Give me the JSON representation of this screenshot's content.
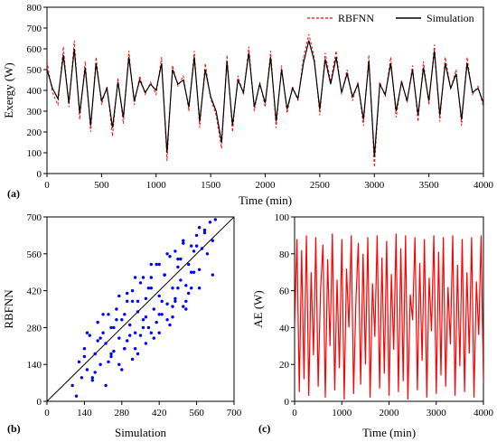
{
  "chart_data": [
    {
      "panel_label": "(a)",
      "type": "line",
      "xlabel": "Time (min)",
      "ylabel": "Exergy (W)",
      "xlim": [
        0,
        4000
      ],
      "ylim": [
        0,
        800
      ],
      "xticks": [
        0,
        500,
        1000,
        1500,
        2000,
        2500,
        3000,
        3500,
        4000
      ],
      "yticks": [
        0,
        100,
        200,
        300,
        400,
        500,
        600,
        700,
        800
      ],
      "legend_placement": "top-right",
      "series": [
        {
          "name": "RBFNN",
          "color": "#ff0000",
          "style": "dashed",
          "x": [
            0,
            50,
            100,
            150,
            200,
            250,
            300,
            350,
            400,
            450,
            500,
            550,
            600,
            650,
            700,
            750,
            800,
            850,
            900,
            950,
            1000,
            1050,
            1100,
            1150,
            1200,
            1250,
            1300,
            1350,
            1400,
            1450,
            1500,
            1550,
            1600,
            1650,
            1700,
            1750,
            1800,
            1850,
            1900,
            1950,
            2000,
            2050,
            2100,
            2150,
            2200,
            2250,
            2300,
            2350,
            2400,
            2450,
            2500,
            2550,
            2600,
            2650,
            2700,
            2750,
            2800,
            2850,
            2900,
            2950,
            3000,
            3050,
            3100,
            3150,
            3200,
            3250,
            3300,
            3350,
            3400,
            3450,
            3500,
            3550,
            3600,
            3650,
            3700,
            3750,
            3800,
            3850,
            3900,
            3950,
            4000
          ],
          "y": [
            540,
            390,
            330,
            610,
            320,
            640,
            260,
            540,
            200,
            560,
            330,
            420,
            180,
            460,
            240,
            590,
            330,
            470,
            380,
            440,
            380,
            560,
            60,
            520,
            420,
            470,
            300,
            590,
            220,
            530,
            360,
            280,
            120,
            570,
            200,
            470,
            380,
            610,
            300,
            440,
            320,
            590,
            220,
            520,
            290,
            420,
            350,
            560,
            670,
            560,
            280,
            580,
            440,
            590,
            380,
            500,
            350,
            440,
            230,
            570,
            30,
            440,
            370,
            560,
            270,
            450,
            340,
            520,
            250,
            540,
            330,
            620,
            250,
            560,
            410,
            500,
            230,
            560,
            380,
            420,
            320
          ]
        },
        {
          "name": "Simulation",
          "color": "#000000",
          "style": "solid",
          "x": [
            0,
            50,
            100,
            150,
            200,
            250,
            300,
            350,
            400,
            450,
            500,
            550,
            600,
            650,
            700,
            750,
            800,
            850,
            900,
            950,
            1000,
            1050,
            1100,
            1150,
            1200,
            1250,
            1300,
            1350,
            1400,
            1450,
            1500,
            1550,
            1600,
            1650,
            1700,
            1750,
            1800,
            1850,
            1900,
            1950,
            2000,
            2050,
            2100,
            2150,
            2200,
            2250,
            2300,
            2350,
            2400,
            2450,
            2500,
            2550,
            2600,
            2650,
            2700,
            2750,
            2800,
            2850,
            2900,
            2950,
            3000,
            3050,
            3100,
            3150,
            3200,
            3250,
            3300,
            3350,
            3400,
            3450,
            3500,
            3550,
            3600,
            3650,
            3700,
            3750,
            3800,
            3850,
            3900,
            3950,
            4000
          ],
          "y": [
            500,
            410,
            360,
            570,
            340,
            600,
            290,
            510,
            230,
            530,
            350,
            410,
            220,
            440,
            270,
            560,
            350,
            450,
            390,
            430,
            400,
            530,
            100,
            500,
            430,
            450,
            320,
            560,
            250,
            500,
            370,
            300,
            150,
            540,
            230,
            450,
            390,
            580,
            320,
            430,
            340,
            560,
            250,
            500,
            310,
            410,
            360,
            530,
            640,
            540,
            310,
            550,
            430,
            560,
            390,
            480,
            370,
            430,
            260,
            540,
            80,
            430,
            380,
            530,
            300,
            440,
            350,
            500,
            280,
            510,
            350,
            590,
            280,
            530,
            410,
            480,
            260,
            530,
            390,
            410,
            340
          ]
        }
      ]
    },
    {
      "panel_label": "(b)",
      "type": "scatter",
      "xlabel": "Simulation",
      "ylabel": "RBFNN",
      "xlim": [
        0,
        700
      ],
      "ylim": [
        0,
        700
      ],
      "xticks": [
        0,
        140,
        280,
        420,
        560,
        700
      ],
      "yticks": [
        0,
        140,
        280,
        420,
        560,
        700
      ],
      "reference_line": [
        [
          0,
          0
        ],
        [
          700,
          700
        ]
      ],
      "series": [
        {
          "color": "#0000ff",
          "x": [
            95,
            110,
            120,
            130,
            140,
            150,
            160,
            170,
            180,
            190,
            200,
            210,
            220,
            230,
            240,
            250,
            260,
            270,
            280,
            290,
            300,
            310,
            320,
            330,
            340,
            350,
            360,
            370,
            380,
            390,
            400,
            410,
            420,
            430,
            440,
            450,
            460,
            470,
            480,
            490,
            500,
            510,
            520,
            530,
            540,
            550,
            560,
            570,
            580,
            590,
            600,
            610,
            620,
            630,
            150,
            180,
            210,
            240,
            270,
            300,
            330,
            360,
            390,
            420,
            450,
            480,
            510,
            540,
            570,
            200,
            230,
            260,
            290,
            320,
            350,
            380,
            410,
            440,
            470,
            500,
            530,
            560,
            250,
            280,
            310,
            340,
            370,
            400,
            430,
            460,
            490,
            520,
            550,
            300,
            330,
            360,
            390,
            420,
            450,
            480,
            510,
            170,
            220,
            270,
            320,
            370,
            420,
            470,
            520,
            570,
            620,
            140,
            190,
            240,
            290,
            340,
            390,
            440,
            490,
            540,
            590
          ],
          "y": [
            60,
            20,
            150,
            90,
            200,
            120,
            250,
            80,
            180,
            300,
            140,
            260,
            220,
            330,
            170,
            280,
            350,
            240,
            310,
            200,
            380,
            290,
            420,
            260,
            340,
            450,
            310,
            390,
            280,
            470,
            350,
            520,
            400,
            330,
            480,
            370,
            550,
            430,
            390,
            510,
            460,
            600,
            440,
            520,
            490,
            570,
            630,
            500,
            580,
            650,
            560,
            680,
            610,
            690,
            260,
            110,
            330,
            180,
            400,
            230,
            470,
            280,
            520,
            330,
            560,
            380,
            610,
            430,
            660,
            240,
            150,
            310,
            200,
            380,
            250,
            430,
            300,
            480,
            360,
            540,
            410,
            590,
            190,
            120,
            250,
            180,
            320,
            240,
            380,
            290,
            430,
            350,
            490,
            410,
            200,
            470,
            260,
            520,
            310,
            570,
            360,
            90,
            60,
            140,
            160,
            220,
            260,
            320,
            380,
            430,
            480,
            170,
            230,
            280,
            330,
            380,
            430,
            480,
            540,
            590,
            640
          ]
        }
      ]
    },
    {
      "panel_label": "(c)",
      "type": "line",
      "xlabel": "Time (min)",
      "ylabel": "AE (W)",
      "xlim": [
        0,
        4000
      ],
      "ylim": [
        0,
        100
      ],
      "xticks": [
        0,
        1000,
        2000,
        3000,
        4000
      ],
      "yticks": [
        0,
        20,
        40,
        60,
        80,
        100
      ],
      "series": [
        {
          "color": "#ff0000",
          "style": "solid",
          "x": [
            0,
            50,
            100,
            150,
            200,
            250,
            300,
            350,
            400,
            450,
            500,
            550,
            600,
            650,
            700,
            750,
            800,
            850,
            900,
            950,
            1000,
            1050,
            1100,
            1150,
            1200,
            1250,
            1300,
            1350,
            1400,
            1450,
            1500,
            1550,
            1600,
            1650,
            1700,
            1750,
            1800,
            1850,
            1900,
            1950,
            2000,
            2050,
            2100,
            2150,
            2200,
            2250,
            2300,
            2350,
            2400,
            2450,
            2500,
            2550,
            2600,
            2650,
            2700,
            2750,
            2800,
            2850,
            2900,
            2950,
            3000,
            3050,
            3100,
            3150,
            3200,
            3250,
            3300,
            3350,
            3400,
            3450,
            3500,
            3550,
            3600,
            3650,
            3700,
            3750,
            3800,
            3850,
            3900,
            3950,
            4000
          ],
          "y": [
            40,
            88,
            5,
            82,
            12,
            90,
            3,
            70,
            25,
            89,
            8,
            60,
            85,
            2,
            77,
            30,
            91,
            6,
            66,
            18,
            88,
            1,
            72,
            40,
            90,
            4,
            55,
            86,
            9,
            80,
            20,
            89,
            2,
            64,
            35,
            90,
            7,
            78,
            15,
            87,
            3,
            69,
            28,
            91,
            5,
            83,
            11,
            90,
            1,
            58,
            44,
            89,
            6,
            75,
            22,
            88,
            2,
            67,
            38,
            90,
            4,
            81,
            14,
            89,
            8,
            62,
            31,
            90,
            3,
            74,
            19,
            88,
            5,
            70,
            26,
            89,
            2,
            65,
            36,
            90,
            10
          ]
        }
      ]
    }
  ]
}
